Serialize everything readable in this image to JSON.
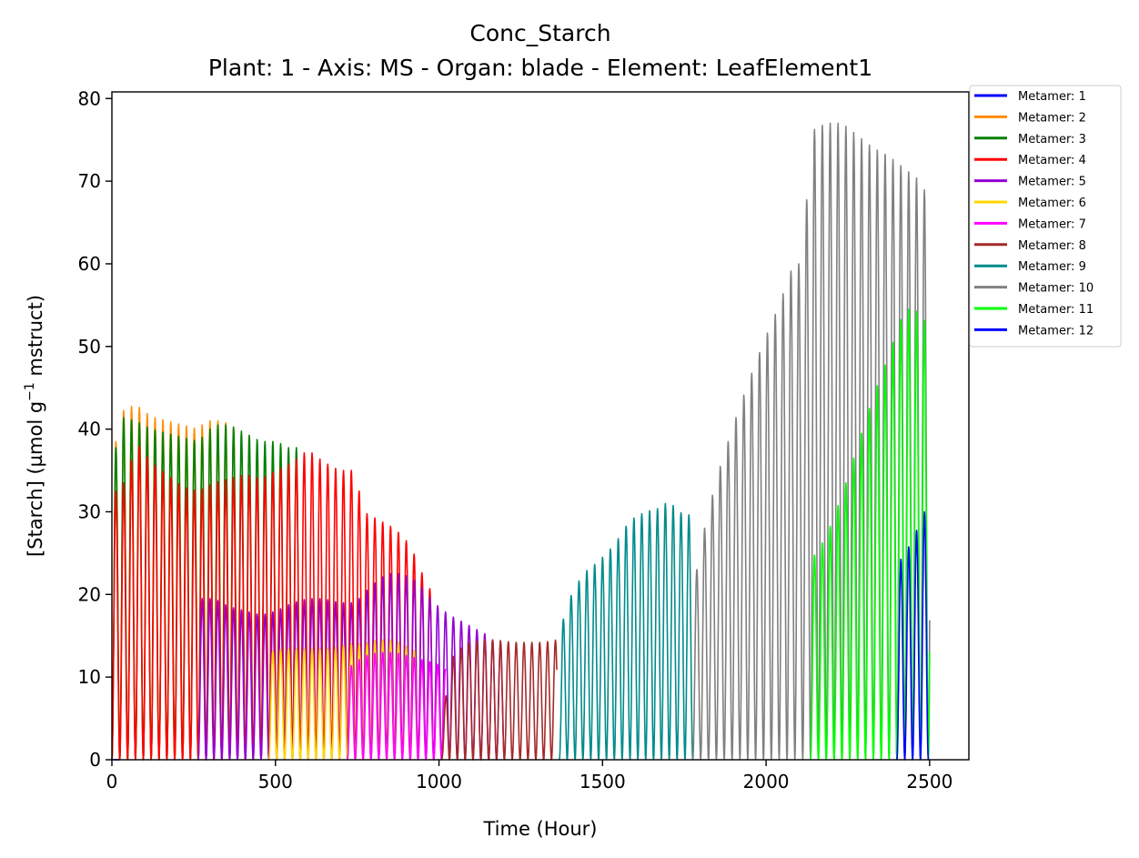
{
  "chart_data": {
    "type": "line",
    "title": "Conc_Starch",
    "subtitle": "Plant: 1 - Axis: MS - Organ: blade - Element: LeafElement1",
    "xlabel": "Time (Hour)",
    "ylabel_main": "[Starch] (µmol g",
    "ylabel_sup": "−1",
    "ylabel_tail": " mstruct)",
    "xlim": [
      0,
      2620
    ],
    "ylim": [
      0,
      80.8
    ],
    "xticks": [
      {
        "value": 0,
        "label": "0"
      },
      {
        "value": 500,
        "label": "500"
      },
      {
        "value": 1000,
        "label": "1000"
      },
      {
        "value": 1500,
        "label": "1500"
      },
      {
        "value": 2000,
        "label": "2000"
      },
      {
        "value": 2500,
        "label": "2500"
      }
    ],
    "yticks": [
      {
        "value": 0,
        "label": "0"
      },
      {
        "value": 10,
        "label": "10"
      },
      {
        "value": 20,
        "label": "20"
      },
      {
        "value": 30,
        "label": "30"
      },
      {
        "value": 40,
        "label": "40"
      },
      {
        "value": 50,
        "label": "50"
      },
      {
        "value": 60,
        "label": "60"
      },
      {
        "value": 70,
        "label": "70"
      },
      {
        "value": 80,
        "label": "80"
      }
    ],
    "period_hours": 24,
    "grid": false,
    "legend_position": "outside-top-right",
    "series": [
      {
        "name": "Metamer: 1",
        "color": "#0000ff",
        "peak_points": [
          [
            0,
            0
          ],
          [
            24,
            0
          ]
        ]
      },
      {
        "name": "Metamer: 2",
        "color": "#ff8c00",
        "peak_points": [
          [
            0,
            35
          ],
          [
            24,
            42
          ],
          [
            72,
            43
          ],
          [
            120,
            41.5
          ],
          [
            168,
            41
          ],
          [
            216,
            40.5
          ],
          [
            264,
            40
          ],
          [
            288,
            41
          ],
          [
            336,
            41
          ],
          [
            384,
            40
          ]
        ]
      },
      {
        "name": "Metamer: 3",
        "color": "#008000",
        "peak_points": [
          [
            0,
            34
          ],
          [
            24,
            41.5
          ],
          [
            72,
            41
          ],
          [
            120,
            40
          ],
          [
            168,
            39.5
          ],
          [
            216,
            39
          ],
          [
            264,
            38.5
          ],
          [
            312,
            40.5
          ],
          [
            360,
            40.5
          ],
          [
            408,
            39.5
          ],
          [
            456,
            38.5
          ],
          [
            504,
            38.5
          ],
          [
            552,
            37.5
          ],
          [
            576,
            38
          ]
        ]
      },
      {
        "name": "Metamer: 4",
        "color": "#ff0000",
        "peak_points": [
          [
            0,
            32
          ],
          [
            48,
            34
          ],
          [
            72,
            38.5
          ],
          [
            120,
            36
          ],
          [
            168,
            34.5
          ],
          [
            216,
            33
          ],
          [
            264,
            32.5
          ],
          [
            312,
            33.5
          ],
          [
            360,
            34
          ],
          [
            408,
            34.5
          ],
          [
            456,
            34
          ],
          [
            504,
            35
          ],
          [
            552,
            36
          ],
          [
            600,
            37.5
          ],
          [
            648,
            36
          ],
          [
            696,
            35
          ],
          [
            744,
            35
          ],
          [
            768,
            30
          ],
          [
            816,
            29
          ],
          [
            864,
            28
          ],
          [
            912,
            26
          ],
          [
            960,
            21.5
          ],
          [
            990,
            19.5
          ]
        ]
      },
      {
        "name": "Metamer: 5",
        "color": "#9400d3",
        "peak_points": [
          [
            264,
            19.5
          ],
          [
            312,
            19.5
          ],
          [
            360,
            18.5
          ],
          [
            408,
            18
          ],
          [
            456,
            17.5
          ],
          [
            504,
            18
          ],
          [
            552,
            19
          ],
          [
            600,
            19.5
          ],
          [
            648,
            19.5
          ],
          [
            696,
            19
          ],
          [
            744,
            19
          ],
          [
            792,
            21
          ],
          [
            840,
            22.5
          ],
          [
            888,
            22.5
          ],
          [
            936,
            21.5
          ],
          [
            984,
            19
          ],
          [
            1032,
            17.5
          ],
          [
            1080,
            16.5
          ],
          [
            1128,
            15.5
          ],
          [
            1152,
            15
          ],
          [
            1176,
            14
          ],
          [
            1200,
            14
          ]
        ]
      },
      {
        "name": "Metamer: 6",
        "color": "#ffd700",
        "peak_points": [
          [
            480,
            13
          ],
          [
            528,
            13.5
          ],
          [
            576,
            13.5
          ],
          [
            624,
            13.5
          ],
          [
            672,
            13.5
          ],
          [
            720,
            14
          ],
          [
            768,
            14
          ],
          [
            816,
            14.5
          ],
          [
            864,
            14.5
          ],
          [
            912,
            13.5
          ],
          [
            936,
            13
          ]
        ]
      },
      {
        "name": "Metamer: 7",
        "color": "#ff00ff",
        "peak_points": [
          [
            720,
            11
          ],
          [
            768,
            12.5
          ],
          [
            816,
            13
          ],
          [
            864,
            13
          ],
          [
            912,
            12.5
          ],
          [
            960,
            12
          ],
          [
            1000,
            11.5
          ],
          [
            1020,
            11
          ]
        ]
      },
      {
        "name": "Metamer: 8",
        "color": "#a52a2a",
        "peak_points": [
          [
            1008,
            3
          ],
          [
            1032,
            12
          ],
          [
            1080,
            14
          ],
          [
            1128,
            14.5
          ],
          [
            1176,
            14.5
          ],
          [
            1224,
            14.2
          ],
          [
            1272,
            14.2
          ],
          [
            1320,
            14.2
          ],
          [
            1360,
            14.5
          ]
        ]
      },
      {
        "name": "Metamer: 9",
        "color": "#008b8b",
        "peak_points": [
          [
            1368,
            15
          ],
          [
            1392,
            19
          ],
          [
            1440,
            22.5
          ],
          [
            1488,
            24
          ],
          [
            1536,
            26
          ],
          [
            1584,
            29
          ],
          [
            1632,
            30
          ],
          [
            1680,
            30.5
          ],
          [
            1704,
            31.5
          ],
          [
            1728,
            30
          ],
          [
            1776,
            29.5
          ]
        ]
      },
      {
        "name": "Metamer: 10",
        "color": "#808080",
        "peak_points": [
          [
            1776,
            20
          ],
          [
            1800,
            26
          ],
          [
            1848,
            34
          ],
          [
            1896,
            40
          ],
          [
            1944,
            45.5
          ],
          [
            1992,
            50.5
          ],
          [
            2040,
            55
          ],
          [
            2088,
            60.5
          ],
          [
            2112,
            59.5
          ],
          [
            2136,
            76
          ],
          [
            2184,
            77
          ],
          [
            2232,
            77
          ],
          [
            2280,
            75.5
          ],
          [
            2328,
            74
          ],
          [
            2376,
            73
          ],
          [
            2424,
            71.5
          ],
          [
            2472,
            70
          ],
          [
            2500,
            67.5
          ]
        ]
      },
      {
        "name": "Metamer: 11",
        "color": "#00ff00",
        "peak_points": [
          [
            2136,
            24
          ],
          [
            2184,
            27
          ],
          [
            2232,
            32
          ],
          [
            2280,
            38
          ],
          [
            2328,
            44
          ],
          [
            2376,
            49
          ],
          [
            2400,
            52
          ],
          [
            2424,
            54.5
          ],
          [
            2448,
            54.5
          ],
          [
            2472,
            54
          ],
          [
            2500,
            52
          ]
        ]
      },
      {
        "name": "Metamer: 12",
        "color": "#0000ff",
        "peak_points": [
          [
            2400,
            23.5
          ],
          [
            2424,
            25
          ],
          [
            2448,
            26.5
          ],
          [
            2472,
            29
          ],
          [
            2496,
            31
          ]
        ]
      }
    ]
  }
}
